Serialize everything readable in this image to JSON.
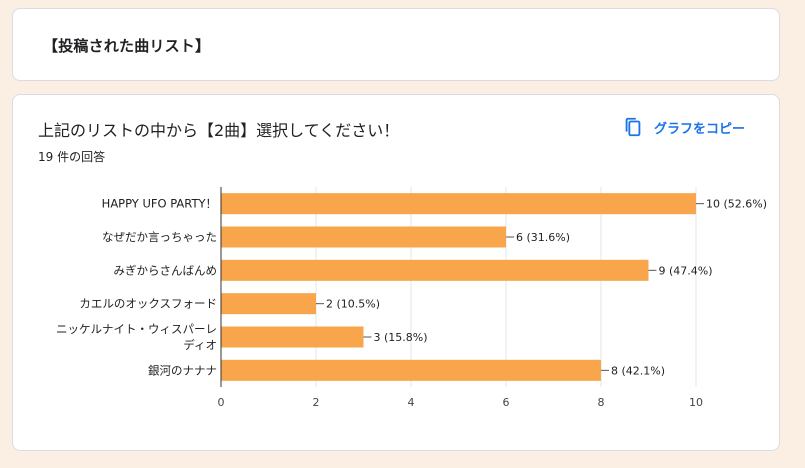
{
  "section": {
    "title": "【投稿された曲リスト】"
  },
  "question": {
    "title": "上記のリストの中から【2曲】選択してください！",
    "response_count": "19 件の回答",
    "copy_graph_label": "グラフをコピー"
  },
  "colors": {
    "bar": "#f9a54b",
    "accent": "#1a73e8",
    "background": "#fbeee3"
  },
  "chart_data": {
    "type": "bar",
    "orientation": "horizontal",
    "categories": [
      [
        "HAPPY UFO PARTY！"
      ],
      [
        "なぜだか言っちゃった"
      ],
      [
        "みぎからさんばんめ"
      ],
      [
        "カエルのオックスフォード"
      ],
      [
        "ニッケルナイト・ウィスパーレ",
        "ディオ"
      ],
      [
        "銀河のナナナ"
      ]
    ],
    "values": [
      10,
      6,
      9,
      2,
      3,
      8
    ],
    "value_labels": [
      "10 (52.6%)",
      "6 (31.6%)",
      "9 (47.4%)",
      "2 (10.5%)",
      "3 (15.8%)",
      "8 (42.1%)"
    ],
    "xlim": [
      0,
      10
    ],
    "xticks": [
      "0",
      "2",
      "4",
      "6",
      "8",
      "10"
    ],
    "grid": true
  }
}
